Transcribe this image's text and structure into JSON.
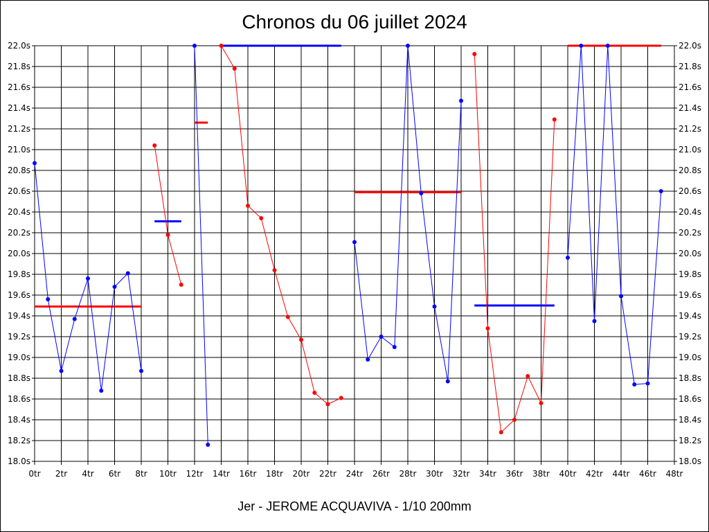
{
  "chart_data": {
    "type": "line",
    "title": "Chronos du 06 juillet 2024",
    "xlabel": "",
    "ylabel": "",
    "footer": "Jer - JEROME ACQUAVIVA - 1/10 200mm",
    "xlim": [
      0,
      48
    ],
    "ylim": [
      18.0,
      22.0
    ],
    "x_ticks": [
      "0tr",
      "2tr",
      "4tr",
      "6tr",
      "8tr",
      "10tr",
      "12tr",
      "14tr",
      "16tr",
      "18tr",
      "20tr",
      "22tr",
      "24tr",
      "26tr",
      "28tr",
      "30tr",
      "32tr",
      "34tr",
      "36tr",
      "38tr",
      "40tr",
      "42tr",
      "44tr",
      "46tr",
      "48tr"
    ],
    "y_ticks": [
      "18.0s",
      "18.2s",
      "18.4s",
      "18.6s",
      "18.8s",
      "19.0s",
      "19.2s",
      "19.4s",
      "19.6s",
      "19.8s",
      "20.0s",
      "20.2s",
      "20.4s",
      "20.6s",
      "20.8s",
      "21.0s",
      "21.2s",
      "21.4s",
      "21.6s",
      "21.8s",
      "22.0s"
    ],
    "grid": true,
    "series": [
      {
        "color": "#0000ff",
        "x": [
          0,
          1,
          2,
          3,
          4,
          5,
          6,
          7,
          8
        ],
        "values": [
          20.87,
          19.56,
          18.87,
          19.37,
          19.76,
          18.68,
          19.68,
          19.81,
          18.87
        ]
      },
      {
        "color": "#ff0000",
        "x": [
          9,
          10,
          11
        ],
        "values": [
          21.04,
          20.18,
          19.7
        ]
      },
      {
        "color": "#0000ff",
        "x": [
          12,
          13
        ],
        "values": [
          22.0,
          18.16
        ]
      },
      {
        "color": "#ff0000",
        "x": [
          14,
          15,
          16,
          17,
          18,
          19,
          20,
          21,
          22,
          23
        ],
        "values": [
          22.0,
          21.78,
          20.46,
          20.34,
          19.84,
          19.39,
          19.17,
          18.66,
          18.55,
          18.61
        ]
      },
      {
        "color": "#0000ff",
        "x": [
          24,
          25,
          26,
          27,
          28,
          29,
          30,
          31,
          32
        ],
        "values": [
          20.11,
          18.98,
          19.2,
          19.1,
          22.0,
          20.58,
          19.49,
          18.77,
          21.47
        ]
      },
      {
        "color": "#ff0000",
        "x": [
          33,
          34,
          35,
          36,
          37,
          38,
          39
        ],
        "values": [
          21.92,
          19.28,
          18.28,
          18.4,
          18.82,
          18.56,
          21.29
        ]
      },
      {
        "color": "#0000ff",
        "x": [
          40,
          41,
          42,
          43,
          44,
          45,
          46,
          47
        ],
        "values": [
          19.96,
          22.0,
          19.35,
          22.0,
          19.59,
          18.74,
          18.75,
          20.6
        ]
      }
    ],
    "averages": [
      {
        "color": "#ff0000",
        "x0": 0,
        "x1": 8,
        "value": 19.49
      },
      {
        "color": "#0000ff",
        "x0": 9,
        "x1": 11,
        "value": 20.31
      },
      {
        "color": "#ff0000",
        "x0": 12,
        "x1": 13,
        "value": 21.26
      },
      {
        "color": "#0000ff",
        "x0": 14,
        "x1": 23,
        "value": 22.0
      },
      {
        "color": "#ff0000",
        "x0": 24,
        "x1": 32,
        "value": 20.59
      },
      {
        "color": "#0000ff",
        "x0": 33,
        "x1": 39,
        "value": 19.5
      },
      {
        "color": "#ff0000",
        "x0": 40,
        "x1": 47,
        "value": 22.0
      }
    ]
  }
}
